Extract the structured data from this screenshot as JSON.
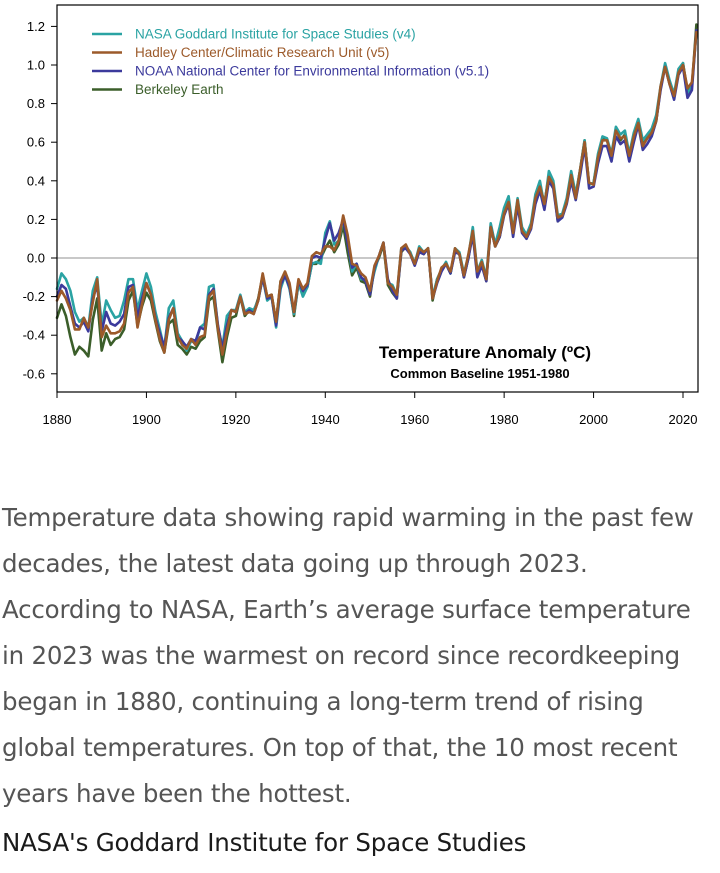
{
  "chart_data": {
    "type": "line",
    "title": "Temperature Anomaly (ºC)",
    "subtitle": "Common Baseline 1951-1980",
    "xlabel": "",
    "ylabel": "",
    "xlim": [
      1880,
      2023
    ],
    "ylim": [
      -0.7,
      1.25
    ],
    "x_ticks": [
      "1880",
      "1900",
      "1920",
      "1940",
      "1960",
      "1980",
      "2000",
      "2020"
    ],
    "y_ticks": [
      "1.2",
      "1.0",
      "0.8",
      "0.6",
      "0.4",
      "0.2",
      "0.0",
      "-0.2",
      "-0.4",
      "-0.6"
    ],
    "zero_line": true,
    "legend_position": "top-left",
    "colors": {
      "zero_line": "#c8c8c8",
      "axis": "#000000"
    },
    "x": [
      1880,
      1881,
      1882,
      1883,
      1884,
      1885,
      1886,
      1887,
      1888,
      1889,
      1890,
      1891,
      1892,
      1893,
      1894,
      1895,
      1896,
      1897,
      1898,
      1899,
      1900,
      1901,
      1902,
      1903,
      1904,
      1905,
      1906,
      1907,
      1908,
      1909,
      1910,
      1911,
      1912,
      1913,
      1914,
      1915,
      1916,
      1917,
      1918,
      1919,
      1920,
      1921,
      1922,
      1923,
      1924,
      1925,
      1926,
      1927,
      1928,
      1929,
      1930,
      1931,
      1932,
      1933,
      1934,
      1935,
      1936,
      1937,
      1938,
      1939,
      1940,
      1941,
      1942,
      1943,
      1944,
      1945,
      1946,
      1947,
      1948,
      1949,
      1950,
      1951,
      1952,
      1953,
      1954,
      1955,
      1956,
      1957,
      1958,
      1959,
      1960,
      1961,
      1962,
      1963,
      1964,
      1965,
      1966,
      1967,
      1968,
      1969,
      1970,
      1971,
      1972,
      1973,
      1974,
      1975,
      1976,
      1977,
      1978,
      1979,
      1980,
      1981,
      1982,
      1983,
      1984,
      1985,
      1986,
      1987,
      1988,
      1989,
      1990,
      1991,
      1992,
      1993,
      1994,
      1995,
      1996,
      1997,
      1998,
      1999,
      2000,
      2001,
      2002,
      2003,
      2004,
      2005,
      2006,
      2007,
      2008,
      2009,
      2010,
      2011,
      2012,
      2013,
      2014,
      2015,
      2016,
      2017,
      2018,
      2019,
      2020,
      2021,
      2022,
      2023
    ],
    "series": [
      {
        "name": "Berkeley Earth",
        "color": "#3b5e2a",
        "values": [
          -0.31,
          -0.24,
          -0.3,
          -0.41,
          -0.5,
          -0.46,
          -0.48,
          -0.51,
          -0.32,
          -0.21,
          -0.48,
          -0.39,
          -0.45,
          -0.42,
          -0.41,
          -0.37,
          -0.22,
          -0.17,
          -0.35,
          -0.25,
          -0.18,
          -0.22,
          -0.33,
          -0.43,
          -0.49,
          -0.34,
          -0.32,
          -0.45,
          -0.47,
          -0.5,
          -0.46,
          -0.47,
          -0.43,
          -0.41,
          -0.22,
          -0.2,
          -0.38,
          -0.54,
          -0.41,
          -0.31,
          -0.3,
          -0.2,
          -0.3,
          -0.27,
          -0.28,
          -0.21,
          -0.09,
          -0.2,
          -0.19,
          -0.33,
          -0.12,
          -0.09,
          -0.15,
          -0.3,
          -0.13,
          -0.18,
          -0.15,
          -0.03,
          -0.03,
          0.0,
          0.05,
          0.09,
          0.03,
          0.07,
          0.17,
          0.03,
          -0.09,
          -0.05,
          -0.12,
          -0.13,
          -0.2,
          -0.05,
          0.0,
          0.07,
          -0.14,
          -0.18,
          -0.21,
          0.03,
          0.06,
          0.03,
          -0.03,
          0.04,
          0.02,
          0.05,
          -0.22,
          -0.11,
          -0.06,
          -0.03,
          -0.08,
          0.04,
          0.02,
          -0.1,
          0.0,
          0.14,
          -0.09,
          -0.03,
          -0.12,
          0.16,
          0.06,
          0.11,
          0.24,
          0.3,
          0.13,
          0.3,
          0.14,
          0.1,
          0.16,
          0.31,
          0.38,
          0.28,
          0.43,
          0.38,
          0.19,
          0.22,
          0.29,
          0.43,
          0.32,
          0.46,
          0.61,
          0.38,
          0.39,
          0.52,
          0.62,
          0.61,
          0.52,
          0.67,
          0.61,
          0.64,
          0.51,
          0.62,
          0.71,
          0.59,
          0.62,
          0.64,
          0.71,
          0.88,
          1.0,
          0.91,
          0.84,
          0.97,
          1.01,
          0.86,
          0.89,
          1.21
        ]
      },
      {
        "name": "NASA Goddard Institute for Space Studies (v4)",
        "color": "#2aa3a3",
        "values": [
          -0.16,
          -0.08,
          -0.11,
          -0.17,
          -0.28,
          -0.33,
          -0.31,
          -0.36,
          -0.17,
          -0.1,
          -0.35,
          -0.22,
          -0.27,
          -0.31,
          -0.3,
          -0.22,
          -0.11,
          -0.11,
          -0.27,
          -0.17,
          -0.08,
          -0.15,
          -0.28,
          -0.37,
          -0.47,
          -0.26,
          -0.22,
          -0.39,
          -0.43,
          -0.48,
          -0.43,
          -0.44,
          -0.36,
          -0.34,
          -0.15,
          -0.14,
          -0.36,
          -0.46,
          -0.3,
          -0.27,
          -0.27,
          -0.19,
          -0.28,
          -0.26,
          -0.27,
          -0.22,
          -0.1,
          -0.22,
          -0.2,
          -0.36,
          -0.16,
          -0.09,
          -0.16,
          -0.29,
          -0.13,
          -0.2,
          -0.15,
          -0.03,
          -0.02,
          -0.03,
          0.13,
          0.19,
          0.07,
          0.09,
          0.2,
          0.09,
          -0.07,
          -0.03,
          -0.11,
          -0.11,
          -0.17,
          -0.07,
          0.01,
          0.08,
          -0.13,
          -0.14,
          -0.19,
          0.05,
          0.06,
          0.03,
          -0.03,
          0.06,
          0.03,
          0.05,
          -0.2,
          -0.11,
          -0.06,
          -0.02,
          -0.08,
          0.05,
          0.03,
          -0.08,
          0.01,
          0.16,
          -0.07,
          -0.01,
          -0.1,
          0.18,
          0.07,
          0.16,
          0.26,
          0.32,
          0.14,
          0.31,
          0.16,
          0.12,
          0.18,
          0.33,
          0.4,
          0.27,
          0.45,
          0.4,
          0.22,
          0.23,
          0.31,
          0.45,
          0.33,
          0.46,
          0.61,
          0.38,
          0.39,
          0.54,
          0.63,
          0.62,
          0.54,
          0.68,
          0.64,
          0.66,
          0.54,
          0.65,
          0.72,
          0.61,
          0.64,
          0.67,
          0.74,
          0.89,
          1.01,
          0.92,
          0.85,
          0.98,
          1.01,
          0.85,
          0.89,
          1.17
        ]
      },
      {
        "name": "NOAA National Center for Environmental Information (v5.1)",
        "color": "#3c3a9c",
        "values": [
          -0.2,
          -0.14,
          -0.16,
          -0.25,
          -0.34,
          -0.36,
          -0.33,
          -0.38,
          -0.21,
          -0.14,
          -0.38,
          -0.28,
          -0.34,
          -0.35,
          -0.33,
          -0.29,
          -0.15,
          -0.14,
          -0.31,
          -0.21,
          -0.13,
          -0.19,
          -0.31,
          -0.39,
          -0.46,
          -0.31,
          -0.26,
          -0.41,
          -0.43,
          -0.46,
          -0.42,
          -0.43,
          -0.36,
          -0.37,
          -0.19,
          -0.16,
          -0.35,
          -0.47,
          -0.35,
          -0.27,
          -0.28,
          -0.2,
          -0.29,
          -0.27,
          -0.29,
          -0.22,
          -0.1,
          -0.21,
          -0.2,
          -0.35,
          -0.14,
          -0.09,
          -0.15,
          -0.28,
          -0.12,
          -0.17,
          -0.14,
          0.0,
          0.01,
          0.0,
          0.1,
          0.18,
          0.09,
          0.13,
          0.2,
          0.08,
          -0.05,
          -0.03,
          -0.1,
          -0.12,
          -0.19,
          -0.05,
          0.01,
          0.08,
          -0.11,
          -0.17,
          -0.21,
          0.04,
          0.05,
          0.02,
          -0.04,
          0.03,
          0.02,
          0.05,
          -0.21,
          -0.13,
          -0.07,
          -0.03,
          -0.08,
          0.03,
          0.02,
          -0.1,
          0.0,
          0.12,
          -0.1,
          -0.04,
          -0.12,
          0.16,
          0.06,
          0.11,
          0.22,
          0.28,
          0.11,
          0.27,
          0.13,
          0.1,
          0.15,
          0.28,
          0.35,
          0.25,
          0.4,
          0.36,
          0.19,
          0.21,
          0.28,
          0.4,
          0.3,
          0.43,
          0.58,
          0.36,
          0.37,
          0.49,
          0.58,
          0.58,
          0.5,
          0.63,
          0.59,
          0.61,
          0.5,
          0.6,
          0.69,
          0.56,
          0.59,
          0.63,
          0.71,
          0.87,
          0.99,
          0.9,
          0.82,
          0.95,
          0.99,
          0.83,
          0.87,
          1.18
        ]
      },
      {
        "name": "Hadley Center/Climatic Research Unit (v5)",
        "color": "#9c5a2a",
        "values": [
          -0.22,
          -0.17,
          -0.21,
          -0.27,
          -0.37,
          -0.37,
          -0.31,
          -0.36,
          -0.23,
          -0.11,
          -0.41,
          -0.35,
          -0.39,
          -0.39,
          -0.38,
          -0.34,
          -0.18,
          -0.15,
          -0.36,
          -0.24,
          -0.13,
          -0.19,
          -0.32,
          -0.42,
          -0.49,
          -0.32,
          -0.26,
          -0.41,
          -0.45,
          -0.47,
          -0.42,
          -0.45,
          -0.41,
          -0.4,
          -0.2,
          -0.17,
          -0.37,
          -0.5,
          -0.38,
          -0.27,
          -0.28,
          -0.2,
          -0.29,
          -0.28,
          -0.29,
          -0.22,
          -0.08,
          -0.2,
          -0.19,
          -0.33,
          -0.12,
          -0.07,
          -0.13,
          -0.28,
          -0.11,
          -0.16,
          -0.13,
          0.01,
          0.03,
          0.02,
          0.06,
          0.06,
          0.04,
          0.09,
          0.22,
          0.12,
          -0.03,
          -0.04,
          -0.08,
          -0.1,
          -0.17,
          -0.04,
          0.01,
          0.08,
          -0.13,
          -0.15,
          -0.19,
          0.05,
          0.07,
          0.02,
          -0.03,
          0.05,
          0.03,
          0.05,
          -0.21,
          -0.12,
          -0.05,
          -0.03,
          -0.07,
          0.05,
          0.02,
          -0.09,
          0.02,
          0.14,
          -0.07,
          -0.02,
          -0.11,
          0.16,
          0.06,
          0.12,
          0.23,
          0.29,
          0.13,
          0.3,
          0.14,
          0.11,
          0.16,
          0.31,
          0.37,
          0.28,
          0.42,
          0.38,
          0.21,
          0.22,
          0.29,
          0.43,
          0.31,
          0.46,
          0.6,
          0.39,
          0.38,
          0.52,
          0.61,
          0.61,
          0.53,
          0.66,
          0.62,
          0.63,
          0.53,
          0.63,
          0.7,
          0.58,
          0.62,
          0.65,
          0.71,
          0.89,
          0.99,
          0.9,
          0.84,
          0.96,
          1.0,
          0.88,
          0.91,
          1.17
        ]
      }
    ],
    "legend": [
      {
        "label": "NASA Goddard Institute for Space Studies (v4)",
        "color": "#2aa3a3"
      },
      {
        "label": "Hadley Center/Climatic Research Unit (v5)",
        "color": "#9c5a2a"
      },
      {
        "label": "NOAA National Center for Environmental Information (v5.1)",
        "color": "#3c3a9c"
      },
      {
        "label": "Berkeley Earth",
        "color": "#3b5e2a"
      }
    ]
  },
  "caption": {
    "text": "Temperature data showing rapid warming in the past few decades, the latest data going up through 2023. According to NASA, Earth’s average surface temperature in 2023 was the warmest on record since recordkeeping began in 1880, continuing a long-term trend of rising global temperatures. On top of that, the 10 most recent years have been the hottest.",
    "credit": "NASA's Goddard Institute for Space Studies"
  }
}
